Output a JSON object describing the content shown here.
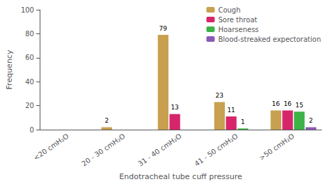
{
  "chart_data": {
    "type": "bar",
    "categories": [
      "<20 cmH₂O",
      "20 - 30 cmH₂O",
      "31 - 40 cmH₂O",
      "41 - 50 cmH₂O",
      ">50 cmH₂O"
    ],
    "series": [
      {
        "name": "Cough",
        "color": "#c8a050",
        "values": [
          0,
          2,
          79,
          23,
          16
        ],
        "value_labels": [
          null,
          "2",
          "79",
          "23",
          "16"
        ]
      },
      {
        "name": "Sore throat",
        "color": "#d6256a",
        "values": [
          0,
          0,
          13,
          11,
          16
        ],
        "value_labels": [
          null,
          null,
          "13",
          "11",
          "16"
        ]
      },
      {
        "name": "Hoarseness",
        "color": "#3db346",
        "values": [
          0,
          0,
          0,
          1,
          15
        ],
        "value_labels": [
          null,
          null,
          null,
          "1",
          "15"
        ]
      },
      {
        "name": "Blood-streaked expectoration",
        "color": "#8b5ab5",
        "values": [
          0,
          0,
          0,
          0,
          2
        ],
        "value_labels": [
          null,
          null,
          null,
          null,
          "2"
        ]
      }
    ],
    "xlabel": "Endotracheal tube cuff pressure",
    "ylabel": "Frequency",
    "ylim": [
      0,
      100
    ],
    "yticks": [
      0,
      20,
      40,
      60,
      80,
      100
    ],
    "data_labels": true,
    "legend": "upper right",
    "grid": false
  }
}
